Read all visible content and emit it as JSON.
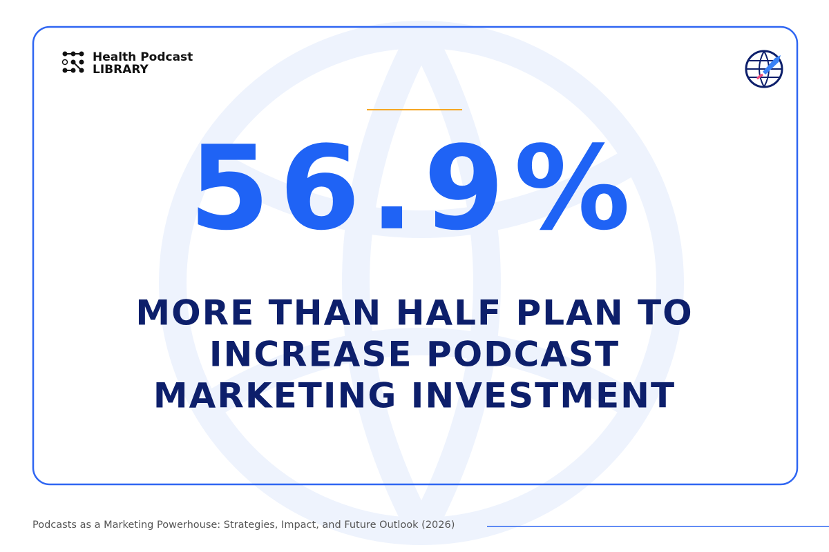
{
  "brand": {
    "line1": "Health Podcast",
    "line2": "LIBRARY"
  },
  "stat": "56.9%",
  "headline": [
    "MORE THAN HALF PLAN TO",
    "INCREASE PODCAST",
    "MARKETING INVESTMENT"
  ],
  "footer": "Podcasts as a Marketing Powerhouse: Strategies, Impact, and Future Outlook (2026)"
}
